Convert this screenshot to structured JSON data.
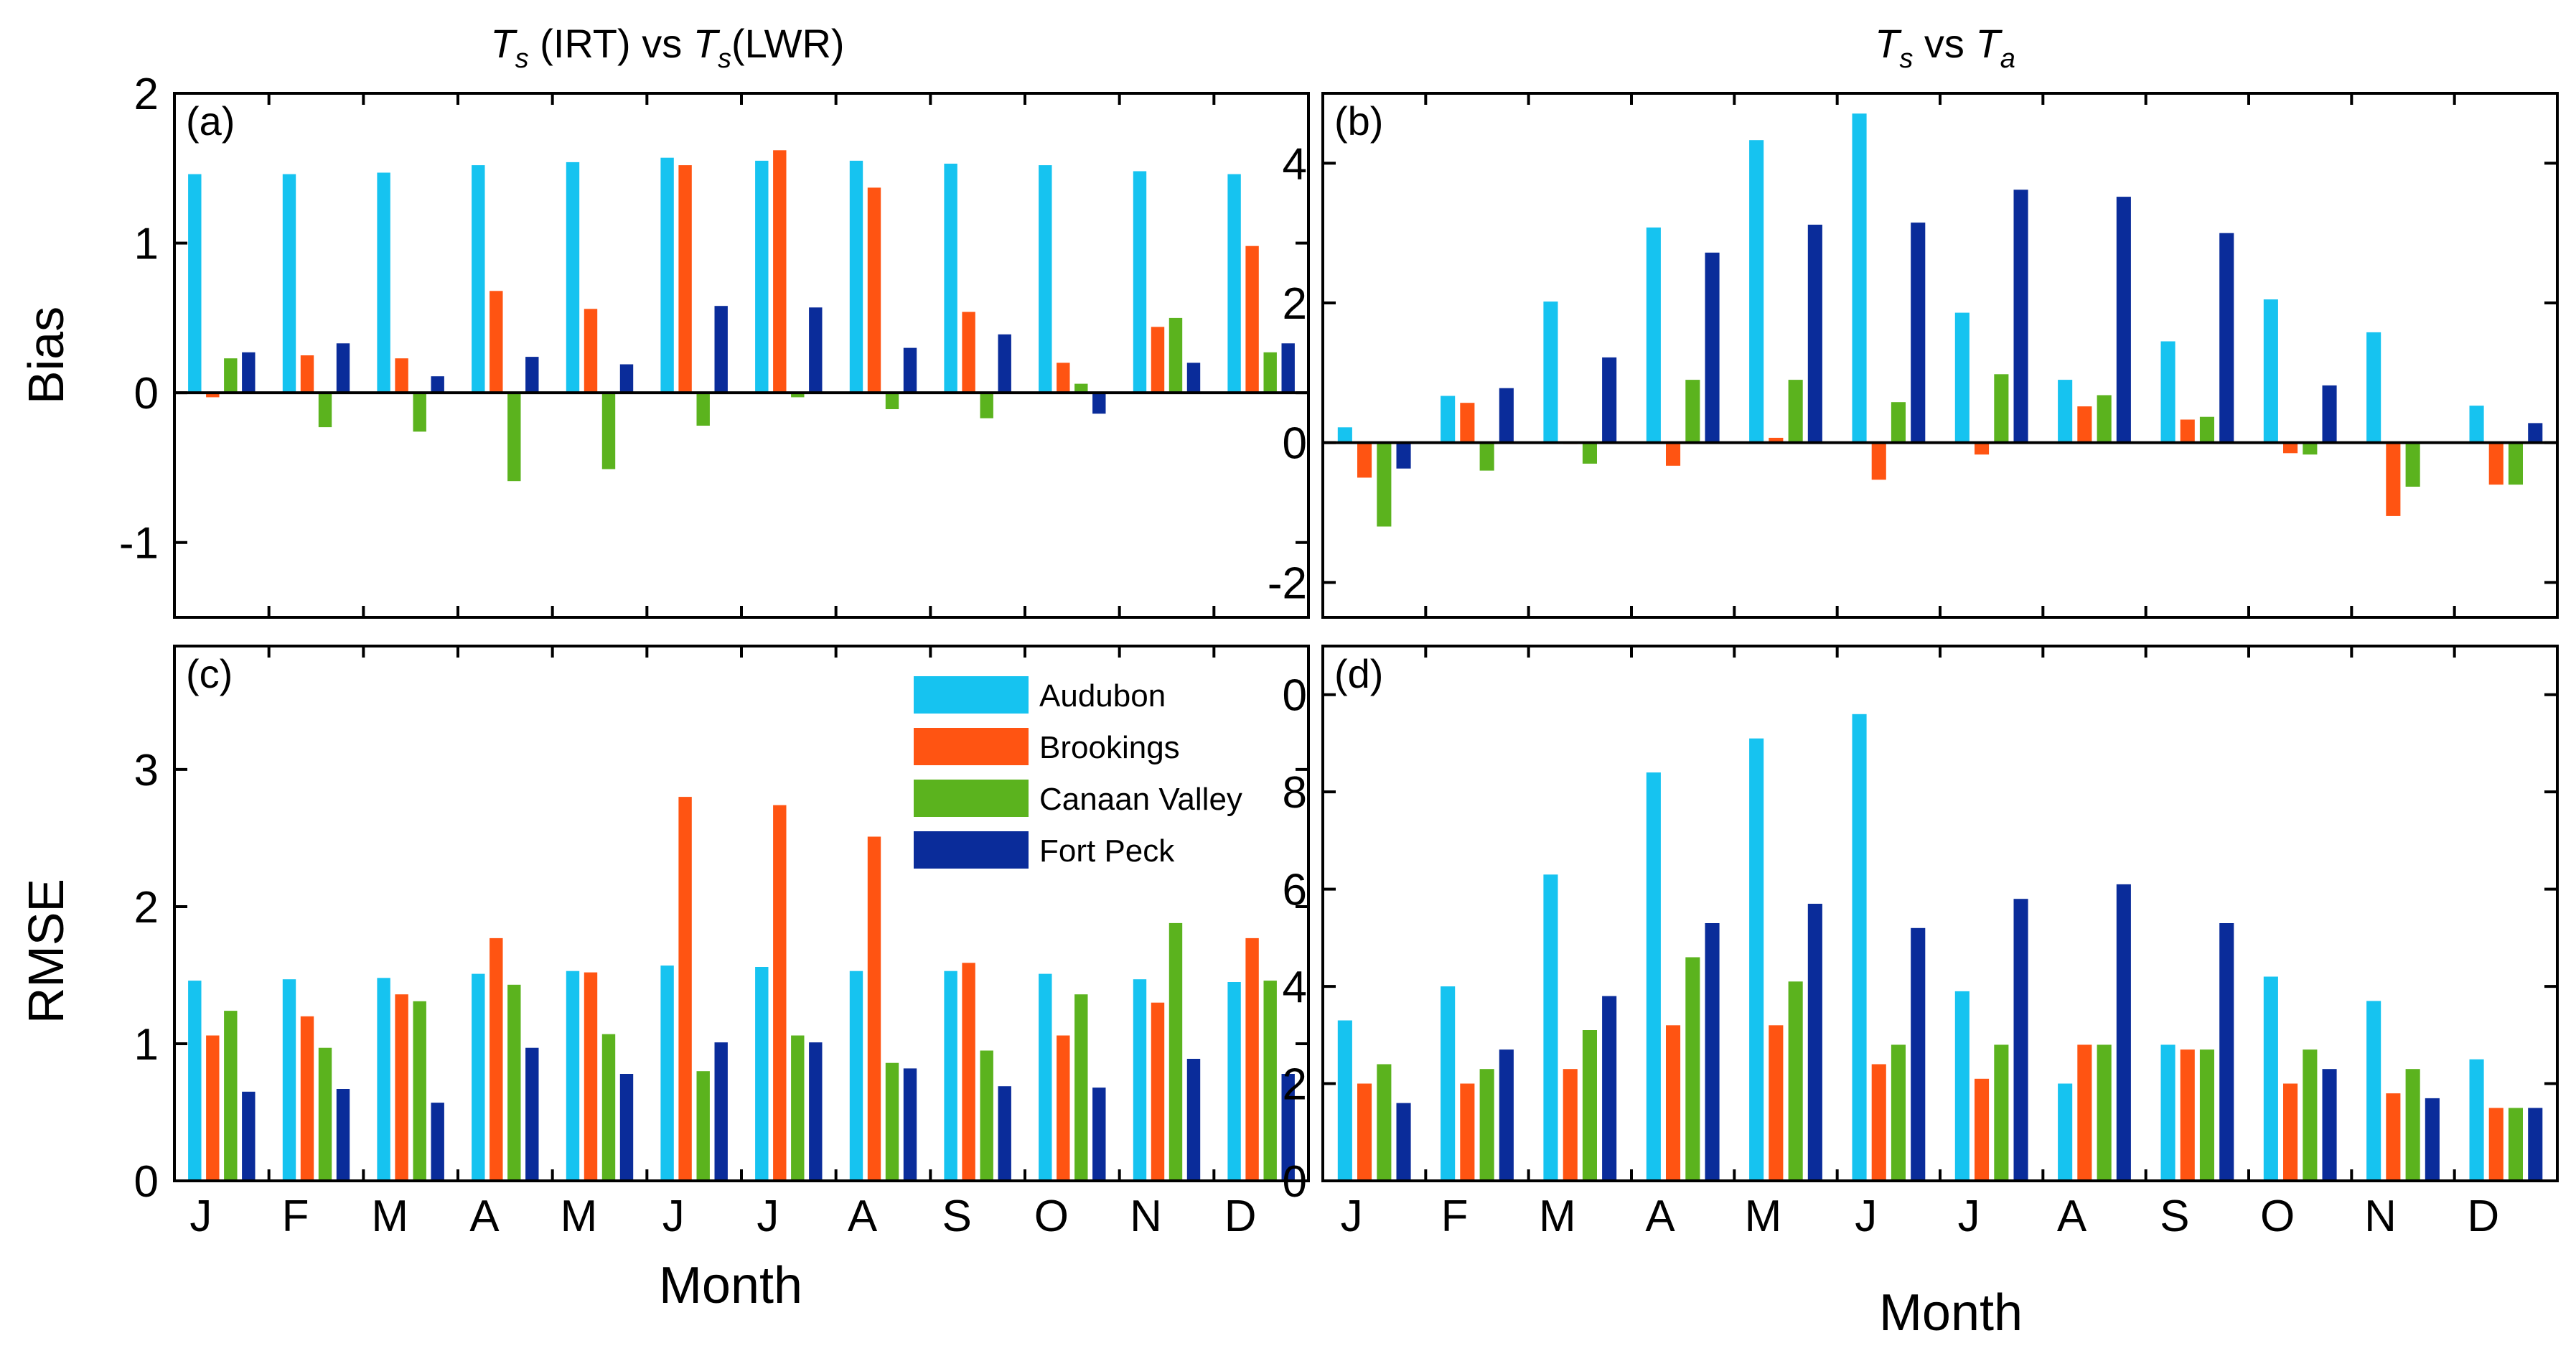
{
  "figure": {
    "col_titles": [
      {
        "T1": "T",
        "s1": "s",
        "mid": " (IRT) vs ",
        "T2": "T",
        "s2": "s",
        "tail": "(LWR)"
      },
      {
        "T1": "T",
        "s1": "s",
        "mid": " vs ",
        "T2": "T",
        "s2": "a",
        "tail": ""
      }
    ],
    "legend": {
      "entries": [
        "Audubon",
        "Brookings",
        "Canaan Valley",
        "Fort Peck"
      ],
      "colors": [
        "#16c3f0",
        "#ff5412",
        "#5bb31e",
        "#0a2c9a"
      ]
    },
    "xlabels": [
      "Month",
      "Month"
    ],
    "ylabels": [
      "Bias",
      "RMSE"
    ]
  },
  "chart_data": [
    {
      "type": "bar",
      "panel_label": "(a)",
      "categories": [
        "J",
        "F",
        "M",
        "A",
        "M",
        "J",
        "J",
        "A",
        "S",
        "O",
        "N",
        "D"
      ],
      "ylim": [
        -1.5,
        2
      ],
      "yticks": [
        -1,
        0,
        1,
        2
      ],
      "ylabel": "Bias",
      "zero_line": true,
      "show_xticklabels": false,
      "series": [
        {
          "name": "Audubon",
          "values": [
            1.46,
            1.46,
            1.47,
            1.52,
            1.54,
            1.57,
            1.55,
            1.55,
            1.53,
            1.52,
            1.48,
            1.46
          ]
        },
        {
          "name": "Brookings",
          "values": [
            -0.03,
            0.25,
            0.23,
            0.68,
            0.56,
            1.52,
            1.62,
            1.37,
            0.54,
            0.2,
            0.44,
            0.98
          ]
        },
        {
          "name": "Canaan Valley",
          "values": [
            0.23,
            -0.23,
            -0.26,
            -0.59,
            -0.51,
            -0.22,
            -0.03,
            -0.11,
            -0.17,
            0.06,
            0.5,
            0.27
          ]
        },
        {
          "name": "Fort Peck",
          "values": [
            0.27,
            0.33,
            0.11,
            0.24,
            0.19,
            0.58,
            0.57,
            0.3,
            0.39,
            -0.14,
            0.2,
            0.33
          ]
        }
      ]
    },
    {
      "type": "bar",
      "panel_label": "(b)",
      "categories": [
        "J",
        "F",
        "M",
        "A",
        "M",
        "J",
        "J",
        "A",
        "S",
        "O",
        "N",
        "D"
      ],
      "ylim": [
        -2.5,
        5
      ],
      "yticks": [
        -2,
        0,
        2,
        4
      ],
      "zero_line": true,
      "show_xticklabels": false,
      "series": [
        {
          "name": "Audubon",
          "values": [
            0.22,
            0.67,
            2.02,
            3.08,
            4.33,
            4.71,
            1.86,
            0.9,
            1.45,
            2.05,
            1.58,
            0.53
          ]
        },
        {
          "name": "Brookings",
          "values": [
            -0.5,
            0.57,
            -0.02,
            -0.33,
            0.07,
            -0.53,
            -0.17,
            0.52,
            0.33,
            -0.15,
            -1.05,
            -0.6
          ]
        },
        {
          "name": "Canaan Valley",
          "values": [
            -1.2,
            -0.4,
            -0.3,
            0.9,
            0.9,
            0.58,
            0.98,
            0.68,
            0.37,
            -0.17,
            -0.63,
            -0.6
          ]
        },
        {
          "name": "Fort Peck",
          "values": [
            -0.37,
            0.78,
            1.22,
            2.72,
            3.12,
            3.15,
            3.62,
            3.52,
            3.0,
            0.82,
            -0.01,
            0.28
          ]
        }
      ]
    },
    {
      "type": "bar",
      "panel_label": "(c)",
      "categories": [
        "J",
        "F",
        "M",
        "A",
        "M",
        "J",
        "J",
        "A",
        "S",
        "O",
        "N",
        "D"
      ],
      "ylim": [
        0,
        3.9
      ],
      "yticks": [
        0,
        1,
        2,
        3
      ],
      "ylabel": "RMSE",
      "xlabel": "Month",
      "zero_line": false,
      "show_xticklabels": true,
      "series": [
        {
          "name": "Audubon",
          "values": [
            1.46,
            1.47,
            1.48,
            1.51,
            1.53,
            1.57,
            1.56,
            1.53,
            1.53,
            1.51,
            1.47,
            1.45
          ]
        },
        {
          "name": "Brookings",
          "values": [
            1.06,
            1.2,
            1.36,
            1.77,
            1.52,
            2.8,
            2.74,
            2.51,
            1.59,
            1.06,
            1.3,
            1.77
          ]
        },
        {
          "name": "Canaan Valley",
          "values": [
            1.24,
            0.97,
            1.31,
            1.43,
            1.07,
            0.8,
            1.06,
            0.86,
            0.95,
            1.36,
            1.88,
            1.46
          ]
        },
        {
          "name": "Fort Peck",
          "values": [
            0.65,
            0.67,
            0.57,
            0.97,
            0.78,
            1.01,
            1.01,
            0.82,
            0.69,
            0.68,
            0.89,
            0.78
          ]
        }
      ]
    },
    {
      "type": "bar",
      "panel_label": "(d)",
      "categories": [
        "J",
        "F",
        "M",
        "A",
        "M",
        "J",
        "J",
        "A",
        "S",
        "O",
        "N",
        "D"
      ],
      "ylim": [
        0,
        11
      ],
      "yticks": [
        0,
        2,
        4,
        6,
        8,
        10
      ],
      "xlabel": "Month",
      "zero_line": false,
      "show_xticklabels": true,
      "series": [
        {
          "name": "Audubon",
          "values": [
            3.3,
            4.0,
            6.3,
            8.4,
            9.1,
            9.6,
            3.9,
            2.0,
            2.8,
            4.2,
            3.7,
            2.5
          ]
        },
        {
          "name": "Brookings",
          "values": [
            2.0,
            2.0,
            2.3,
            3.2,
            3.2,
            2.4,
            2.1,
            2.8,
            2.7,
            2.0,
            1.8,
            1.5
          ]
        },
        {
          "name": "Canaan Valley",
          "values": [
            2.4,
            2.3,
            3.1,
            4.6,
            4.1,
            2.8,
            2.8,
            2.8,
            2.7,
            2.7,
            2.3,
            1.5
          ]
        },
        {
          "name": "Fort Peck",
          "values": [
            1.6,
            2.7,
            3.8,
            5.3,
            5.7,
            5.2,
            5.8,
            6.1,
            5.3,
            2.3,
            1.7,
            1.5
          ]
        }
      ]
    }
  ]
}
